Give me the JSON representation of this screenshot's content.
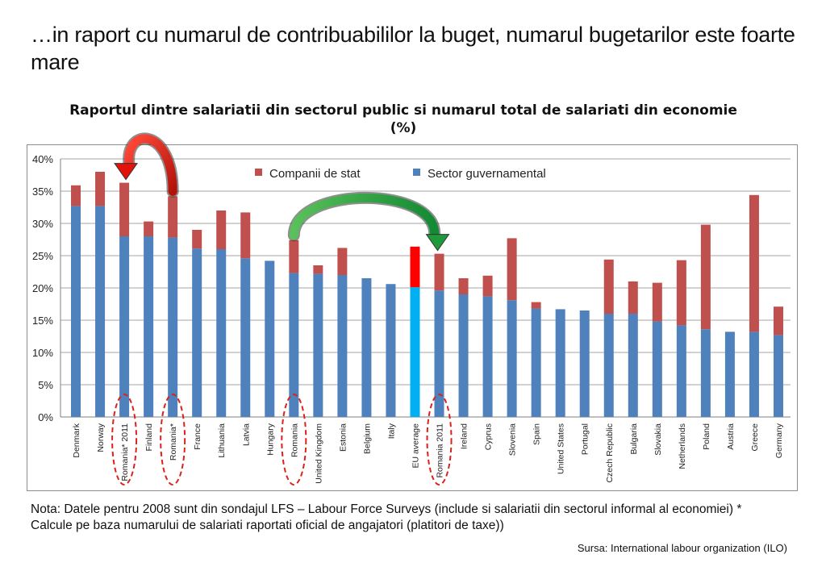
{
  "slide": {
    "title": "…in raport cu numarul de contribuabililor la buget, numarul bugetarilor este foarte mare",
    "note": "Nota: Datele pentru 2008 sunt din sondajul LFS – Labour Force Surveys (include si salariatii din sectorul informal al economiei) * Calcule pe baza numarului de salariati raportati oficial de angajatori (platitori de taxe))",
    "source": "Sursa: International labour organization (ILO)"
  },
  "chart_data": {
    "type": "bar",
    "stacked": true,
    "title": "Raportul dintre salariatii din sectorul public si numarul total de salariati din economie (%)",
    "xlabel": "",
    "ylabel": "",
    "ylim": [
      0,
      40
    ],
    "yticks": [
      "0%",
      "5%",
      "10%",
      "15%",
      "20%",
      "25%",
      "30%",
      "35%",
      "40%"
    ],
    "grid": true,
    "legend_position": "top-center",
    "categories": [
      "Denmark",
      "Norway",
      "Romania* 2011",
      "Finland",
      "Romania*",
      "France",
      "Lithuania",
      "Latvia",
      "Hungary",
      "Romania",
      "United Kingdom",
      "Estonia",
      "Belgium",
      "Italy",
      "EU average",
      "Romania 2011",
      "Ireland",
      "Cyprus",
      "Slovenia",
      "Spain",
      "United States",
      "Portugal",
      "Czech Republic",
      "Bulgaria",
      "Slovakia",
      "Netherlands",
      "Poland",
      "Austria",
      "Greece",
      "Germany"
    ],
    "series": [
      {
        "name": "Sector guvernamental",
        "color": "#4f81bd",
        "values": [
          32.7,
          32.7,
          28.0,
          28.0,
          27.8,
          26.1,
          26.0,
          24.6,
          24.2,
          22.3,
          22.2,
          22.0,
          21.5,
          20.6,
          20.1,
          19.6,
          19.0,
          18.7,
          18.1,
          16.8,
          16.7,
          16.5,
          16.0,
          16.0,
          14.8,
          14.2,
          13.6,
          13.2,
          13.2,
          12.7
        ]
      },
      {
        "name": "Companii de stat",
        "color": "#c0504d",
        "values": [
          3.2,
          5.3,
          8.3,
          2.3,
          6.4,
          2.9,
          6.0,
          7.1,
          0,
          5.1,
          1.3,
          4.2,
          0,
          0,
          6.3,
          5.7,
          2.5,
          3.2,
          9.6,
          1.0,
          0,
          0,
          8.4,
          5.0,
          6.0,
          10.1,
          16.2,
          0,
          21.2,
          4.4
        ]
      }
    ],
    "highlight": {
      "category": "EU average",
      "colors": {
        "Sector guvernamental": "#00b0f0",
        "Companii de stat": "#ff0000"
      }
    },
    "circled_categories": [
      "Romania* 2011",
      "Romania*",
      "Romania",
      "Romania 2011"
    ],
    "arrows": [
      {
        "from": "Romania*",
        "to": "Romania* 2011",
        "color": "#e3120b"
      },
      {
        "from": "Romania",
        "to": "Romania 2011",
        "color": "#1e9a3a"
      }
    ],
    "colors": {
      "grid": "#a6a6a6",
      "axis": "#7f7f7f",
      "circle": "#d9231c"
    }
  }
}
